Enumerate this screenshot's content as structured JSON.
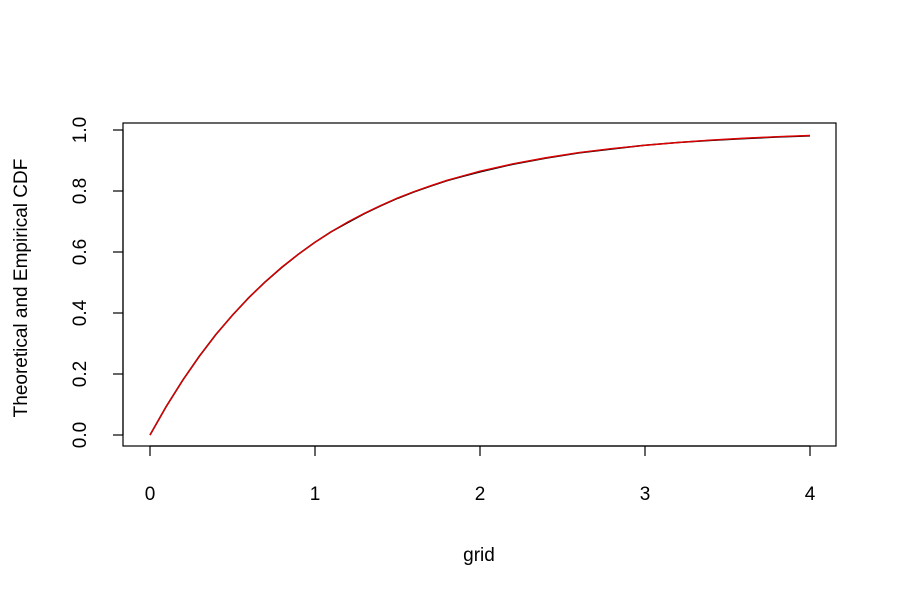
{
  "chart_data": {
    "type": "line",
    "title": "",
    "xlabel": "grid",
    "ylabel": "Theoretical and Empirical CDF",
    "xlim": [
      0,
      4
    ],
    "ylim": [
      0,
      1
    ],
    "x_ticks": [
      "0",
      "1",
      "2",
      "3",
      "4"
    ],
    "y_ticks": [
      "0.0",
      "0.2",
      "0.4",
      "0.6",
      "0.8",
      "1.0"
    ],
    "grid": false,
    "legend": "none",
    "x": [
      0,
      0.1,
      0.2,
      0.3,
      0.4,
      0.5,
      0.6,
      0.7,
      0.8,
      0.9,
      1.0,
      1.1,
      1.2,
      1.3,
      1.4,
      1.5,
      1.6,
      1.7,
      1.8,
      1.9,
      2.0,
      2.2,
      2.4,
      2.6,
      2.8,
      3.0,
      3.2,
      3.4,
      3.6,
      3.8,
      4.0
    ],
    "series": [
      {
        "color": "#000000",
        "values": [
          0.0,
          0.095,
          0.181,
          0.259,
          0.33,
          0.393,
          0.451,
          0.503,
          0.55,
          0.593,
          0.632,
          0.667,
          0.697,
          0.726,
          0.752,
          0.776,
          0.797,
          0.816,
          0.834,
          0.849,
          0.863,
          0.888,
          0.908,
          0.925,
          0.938,
          0.95,
          0.959,
          0.966,
          0.972,
          0.977,
          0.981
        ]
      },
      {
        "color": "#dd0000",
        "values": [
          0.0,
          0.095,
          0.181,
          0.259,
          0.33,
          0.393,
          0.451,
          0.503,
          0.551,
          0.593,
          0.632,
          0.667,
          0.699,
          0.727,
          0.753,
          0.777,
          0.798,
          0.817,
          0.835,
          0.85,
          0.865,
          0.889,
          0.909,
          0.926,
          0.939,
          0.95,
          0.959,
          0.967,
          0.973,
          0.978,
          0.982
        ]
      }
    ]
  }
}
